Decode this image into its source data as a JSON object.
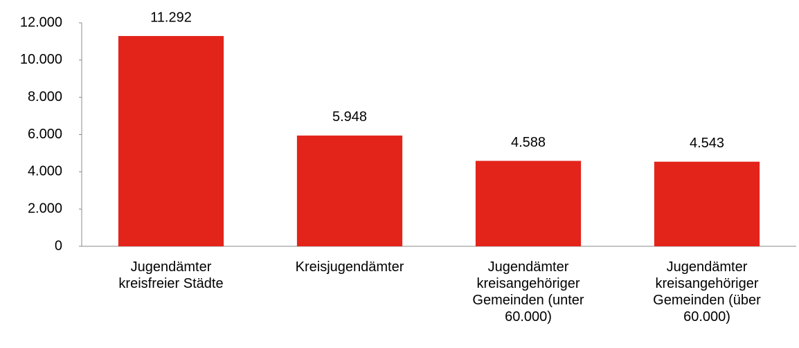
{
  "chart_data": {
    "type": "bar",
    "categories": [
      "Jugendämter kreisfreier Städte",
      "Kreisjugendämter",
      "Jugendämter kreisangehöriger Gemeinden (unter 60.000)",
      "Jugendämter kreisangehöriger Gemeinden (über 60.000)"
    ],
    "values": [
      11292,
      5948,
      4588,
      4543
    ],
    "value_labels": [
      "11.292",
      "5.948",
      "4.588",
      "4.543"
    ],
    "color": "#e3241b",
    "ylim": [
      0,
      12000
    ],
    "yticks": [
      0,
      {
        "value": 2000,
        "label": "2.000"
      },
      {
        "value": 4000,
        "label": "4.000"
      },
      {
        "value": 6000,
        "label": "6.000"
      },
      {
        "value": 8000,
        "label": "8.000"
      },
      {
        "value": 10000,
        "label": "10.000"
      },
      {
        "value": 12000,
        "label": "12.000"
      }
    ],
    "grid": false
  }
}
